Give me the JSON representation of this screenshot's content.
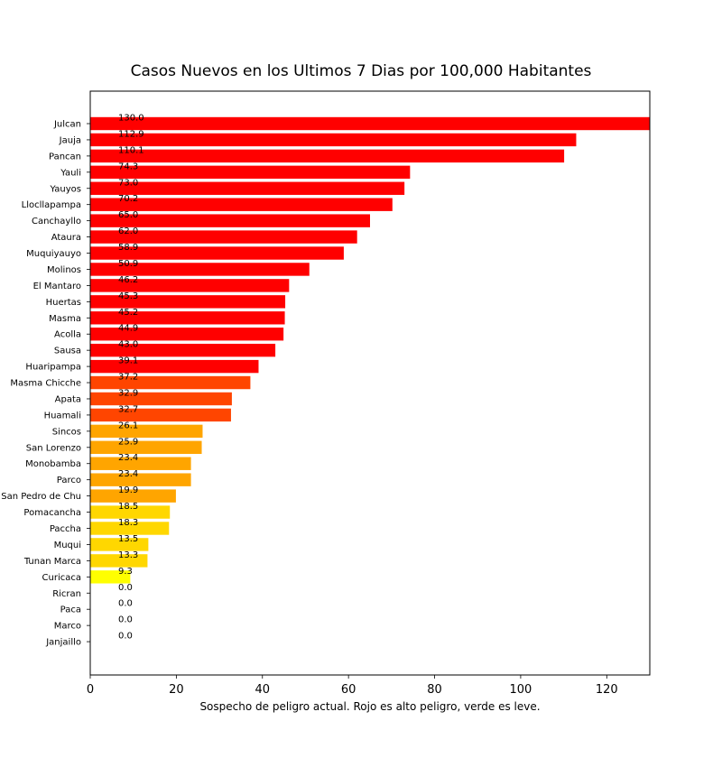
{
  "chart_data": {
    "type": "bar",
    "orientation": "horizontal",
    "title": "Casos Nuevos en los Ultimos 7 Dias por 100,000 Habitantes",
    "xlabel": "Sospecho de peligro actual. Rojo es alto peligro, verde es leve.",
    "ylabel": "",
    "xlim": [
      0,
      130
    ],
    "xticks": [
      "0",
      "20",
      "40",
      "60",
      "80",
      "100",
      "120"
    ],
    "grid": false,
    "categories": [
      "Julcan",
      "Jauja",
      "Pancan",
      "Yauli",
      "Yauyos",
      "Llocllapampa",
      "Canchayllo",
      "Ataura",
      "Muquiyauyo",
      "Molinos",
      "El Mantaro",
      "Huertas",
      "Masma",
      "Acolla",
      "Sausa",
      "Huaripampa",
      "Masma Chicche",
      "Apata",
      "Huamali",
      "Sincos",
      "San Lorenzo",
      "Monobamba",
      "Parco",
      "San Pedro de Chu",
      "Pomacancha",
      "Paccha",
      "Muqui",
      "Tunan Marca",
      "Curicaca",
      "Ricran",
      "Paca",
      "Marco",
      "Janjaillo"
    ],
    "values": [
      130.0,
      112.9,
      110.1,
      74.3,
      73.0,
      70.2,
      65.0,
      62.0,
      58.9,
      50.9,
      46.2,
      45.3,
      45.2,
      44.9,
      43.0,
      39.1,
      37.2,
      32.9,
      32.7,
      26.1,
      25.9,
      23.4,
      23.4,
      19.9,
      18.5,
      18.3,
      13.5,
      13.3,
      9.3,
      0.0,
      0.0,
      0.0,
      0.0
    ],
    "labels": [
      "130.0",
      "112.9",
      "110.1",
      "74.3",
      "73.0",
      "70.2",
      "65.0",
      "62.0",
      "58.9",
      "50.9",
      "46.2",
      "45.3",
      "45.2",
      "44.9",
      "43.0",
      "39.1",
      "37.2",
      "32.9",
      "32.7",
      "26.1",
      "25.9",
      "23.4",
      "23.4",
      "19.9",
      "18.5",
      "18.3",
      "13.5",
      "13.3",
      "9.3",
      "0.0",
      "0.0",
      "0.0",
      "0.0"
    ],
    "colors": [
      "#ff0000",
      "#ff0000",
      "#ff0000",
      "#ff0000",
      "#ff0000",
      "#ff0000",
      "#ff0000",
      "#ff0000",
      "#ff0000",
      "#ff0000",
      "#ff0000",
      "#ff0000",
      "#ff0000",
      "#ff0000",
      "#ff0000",
      "#ff0000",
      "#ff4500",
      "#ff4500",
      "#ff4500",
      "#ffa500",
      "#ffa500",
      "#ffa500",
      "#ffa500",
      "#ffa500",
      "#ffd700",
      "#ffd700",
      "#ffd700",
      "#ffd700",
      "#ffff00",
      "#ffff00",
      "#ffff00",
      "#ffff00",
      "#ffff00"
    ]
  }
}
